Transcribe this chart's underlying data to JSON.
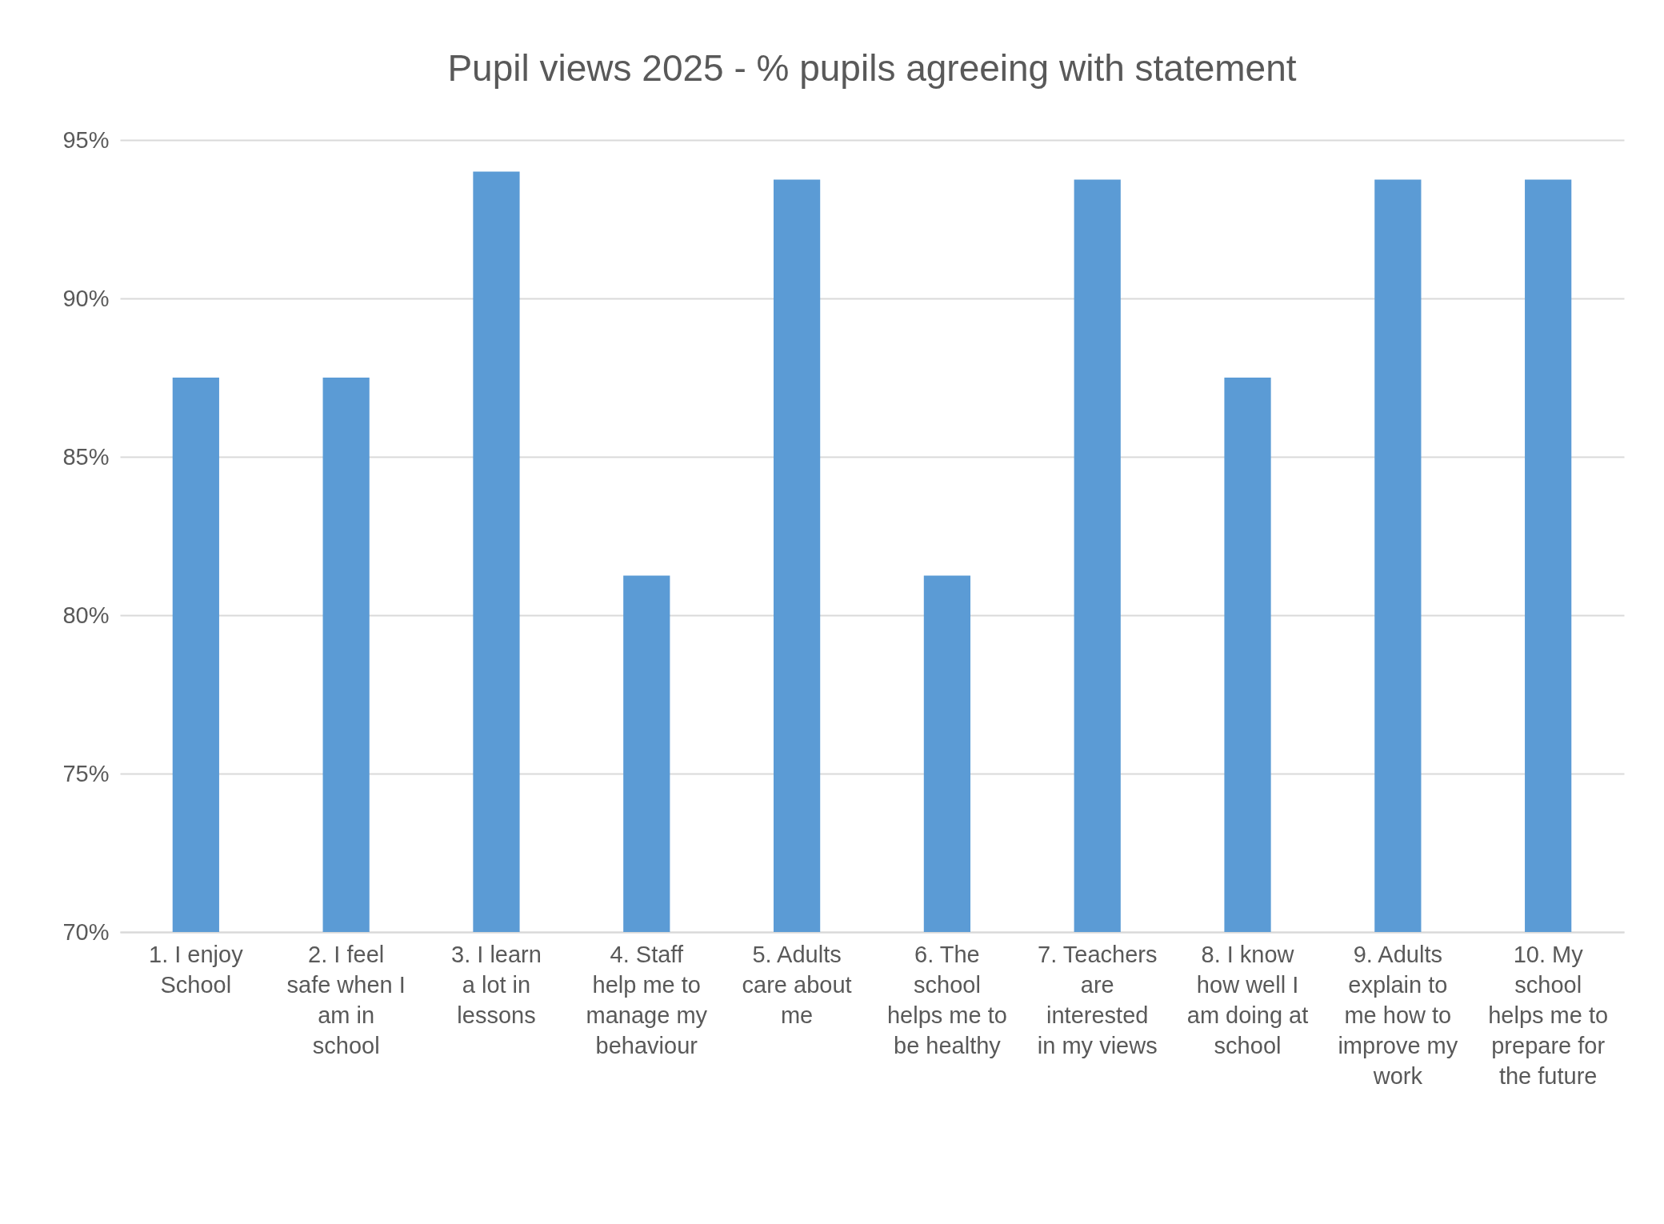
{
  "chart_data": {
    "type": "bar",
    "title": "Pupil views 2025 - % pupils agreeing with statement",
    "categories": [
      "1. I enjoy School",
      "2. I feel safe when I am in school",
      "3. I learn a lot in lessons",
      "4. Staff help me to manage my behaviour",
      "5. Adults care about me",
      "6. The school helps me to be healthy",
      "7. Teachers are interested in my views",
      "8. I know how well I am doing at school",
      "9. Adults explain to me how to improve my work",
      "10. My school helps me to prepare for the future"
    ],
    "values": [
      87.5,
      87.5,
      94,
      81.25,
      93.75,
      81.25,
      93.75,
      87.5,
      93.75,
      93.75
    ],
    "color": "#5b9bd5",
    "ylim": [
      70,
      95
    ],
    "yticks": [
      {
        "value": 70,
        "label": "70%"
      },
      {
        "value": 75,
        "label": "75%"
      },
      {
        "value": 80,
        "label": "80%"
      },
      {
        "value": 85,
        "label": "85%"
      },
      {
        "value": 90,
        "label": "90%"
      },
      {
        "value": 95,
        "label": "95%"
      }
    ],
    "grid": "y"
  }
}
